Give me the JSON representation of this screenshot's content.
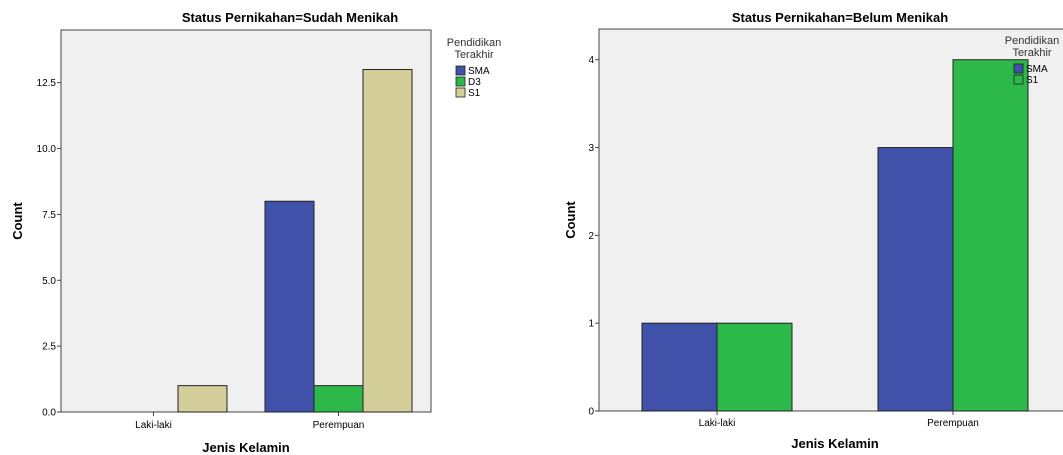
{
  "chart_data": [
    {
      "type": "bar",
      "title": "Status Pernikahan=Sudah Menikah",
      "xlabel": "Jenis Kelamin",
      "ylabel": "Count",
      "categories": [
        "Laki-laki",
        "Perempuan"
      ],
      "ylim": [
        0,
        14.5
      ],
      "yticks": [
        "0.0",
        "2.5",
        "5.0",
        "7.5",
        "10.0",
        "12.5"
      ],
      "ytick_values": [
        0,
        2.5,
        5,
        7.5,
        10,
        12.5
      ],
      "legend_title": [
        "Pendidikan",
        "Terakhir"
      ],
      "legend_position": "right",
      "series": [
        {
          "name": "SMA",
          "values": [
            0,
            8
          ],
          "color": "#3f51a8"
        },
        {
          "name": "D3",
          "values": [
            0,
            1
          ],
          "color": "#2db84a"
        },
        {
          "name": "S1",
          "values": [
            1,
            13
          ],
          "color": "#d4cf9a"
        }
      ]
    },
    {
      "type": "bar",
      "title": "Status Pernikahan=Belum Menikah",
      "xlabel": "Jenis Kelamin",
      "ylabel": "Count",
      "categories": [
        "Laki-laki",
        "Perempuan"
      ],
      "ylim": [
        0,
        4.35
      ],
      "yticks": [
        "0",
        "1",
        "2",
        "3",
        "4"
      ],
      "ytick_values": [
        0,
        1,
        2,
        3,
        4
      ],
      "legend_title": [
        "Pendidikan",
        "Terakhir"
      ],
      "legend_position": "right",
      "series": [
        {
          "name": "SMA",
          "values": [
            1,
            3
          ],
          "color": "#3f51a8"
        },
        {
          "name": "S1",
          "values": [
            1,
            4
          ],
          "color": "#2db84a"
        }
      ]
    }
  ]
}
